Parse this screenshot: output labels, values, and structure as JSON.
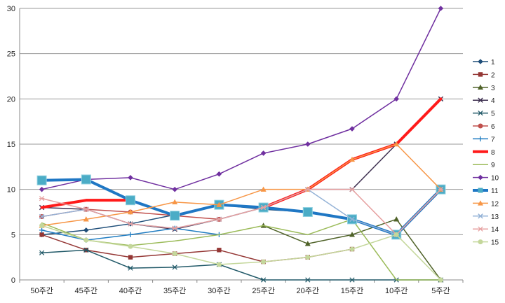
{
  "chart_data": {
    "type": "line",
    "categories": [
      "50주간",
      "45주간",
      "40주간",
      "35주간",
      "30주간",
      "25주간",
      "20주간",
      "15주간",
      "10주간",
      "5주간"
    ],
    "ylim": [
      0,
      30
    ],
    "yticks": [
      0,
      5,
      10,
      15,
      20,
      25,
      30
    ],
    "grid": true,
    "legend_position": "right",
    "series": [
      {
        "name": "1",
        "color": "#1f4e79",
        "marker": "diamond",
        "width": 1.5,
        "values": [
          5,
          5.5,
          6.2,
          7.2,
          8.3,
          7.8,
          7.5,
          6.7,
          5,
          10
        ]
      },
      {
        "name": "2",
        "color": "#943634",
        "marker": "square",
        "width": 1.5,
        "values": [
          5,
          3.3,
          2.5,
          2.9,
          3.3,
          2,
          2.5,
          3.4,
          null,
          null
        ]
      },
      {
        "name": "3",
        "color": "#4f6228",
        "marker": "triangle",
        "width": 1.5,
        "values": [
          null,
          null,
          null,
          null,
          null,
          6,
          4,
          5,
          6.7,
          0
        ]
      },
      {
        "name": "4",
        "color": "#3f3151",
        "marker": "x",
        "width": 1.5,
        "values": [
          8,
          7.8,
          6.2,
          5.6,
          6.7,
          8,
          10,
          10,
          15,
          20
        ]
      },
      {
        "name": "5",
        "color": "#215968",
        "marker": "star",
        "width": 1.5,
        "values": [
          3,
          3.3,
          1.3,
          1.4,
          1.7,
          0,
          0,
          0,
          0,
          0
        ]
      },
      {
        "name": "6",
        "color": "#c0504d",
        "marker": "circle",
        "width": 1.5,
        "values": [
          7,
          7.8,
          7.5,
          7.1,
          6.7,
          null,
          null,
          null,
          null,
          null
        ]
      },
      {
        "name": "7",
        "color": "#1f7cc1",
        "marker": "plus",
        "width": 1.5,
        "values": [
          5.5,
          4.4,
          5,
          5.7,
          5,
          null,
          null,
          null,
          null,
          null
        ]
      },
      {
        "name": "8",
        "color": "#ff1a1a",
        "marker": "none",
        "width": 4,
        "values": [
          8,
          8.8,
          8.8,
          null,
          null,
          8,
          10,
          13.3,
          15,
          20
        ]
      },
      {
        "name": "9",
        "color": "#9bbb59",
        "marker": "none",
        "width": 1.5,
        "values": [
          6.3,
          4.4,
          3.8,
          4.3,
          5,
          6,
          5,
          6.7,
          0,
          0
        ]
      },
      {
        "name": "10",
        "color": "#7030a0",
        "marker": "diamond",
        "width": 1.5,
        "values": [
          10,
          11.1,
          11.3,
          10,
          11.7,
          14,
          15,
          16.7,
          20,
          30
        ]
      },
      {
        "name": "11",
        "color": "#1f77c4",
        "marker": "bigsquare",
        "width": 4,
        "values": [
          11,
          11.1,
          8.8,
          7.1,
          8.3,
          8,
          7.5,
          6.7,
          5,
          10
        ]
      },
      {
        "name": "12",
        "color": "#f79646",
        "marker": "triangle",
        "width": 1.5,
        "values": [
          6,
          6.7,
          7.5,
          8.6,
          8.3,
          10,
          10,
          13.3,
          15,
          10
        ]
      },
      {
        "name": "13",
        "color": "#95b3d7",
        "marker": "x",
        "width": 1.5,
        "values": [
          7,
          7.8,
          6.2,
          5.7,
          6.7,
          8,
          10,
          6.7,
          5,
          10
        ]
      },
      {
        "name": "14",
        "color": "#e6a0a0",
        "marker": "star",
        "width": 1.5,
        "values": [
          9,
          7.8,
          6.2,
          5.7,
          6.7,
          8,
          10,
          10,
          5,
          10
        ]
      },
      {
        "name": "15",
        "color": "#c4d79b",
        "marker": "circle",
        "width": 1.5,
        "values": [
          6,
          4.4,
          3.7,
          2.9,
          1.7,
          2,
          2.5,
          3.4,
          5,
          0
        ]
      }
    ]
  }
}
